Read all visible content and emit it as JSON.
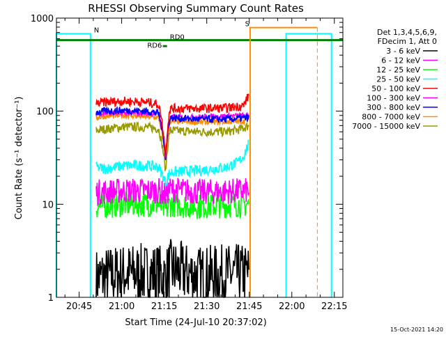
{
  "chart_data": {
    "type": "line",
    "title": "RHESSI Observing Summary Count Rates",
    "xlabel": "Start Time (24-Jul-10 20:37:02)",
    "ylabel": "Count Rate (s⁻¹ detector⁻¹)",
    "y_scale": "log",
    "ylim": [
      1,
      1000
    ],
    "xlim_minutes": [
      0,
      101
    ],
    "x_ticks": [
      {
        "min": 8,
        "label": "20:45"
      },
      {
        "min": 23,
        "label": "21:00"
      },
      {
        "min": 38,
        "label": "21:15"
      },
      {
        "min": 53,
        "label": "21:30"
      },
      {
        "min": 68,
        "label": "21:45"
      },
      {
        "min": 83,
        "label": "22:00"
      },
      {
        "min": 98,
        "label": "22:15"
      }
    ],
    "y_ticks": [
      {
        "value": 1,
        "label": "1"
      },
      {
        "value": 10,
        "label": "10"
      },
      {
        "value": 100,
        "label": "100"
      },
      {
        "value": 1000,
        "label": "1000"
      }
    ],
    "legend_header": [
      "Det 1,3,4,5,6,9,",
      "FDecim 1, Att 0"
    ],
    "legend_placement": "right",
    "series": [
      {
        "name": "3 - 6 keV",
        "color": "#000000",
        "x": [
          14,
          24,
          36,
          38.5,
          40,
          50,
          68
        ],
        "y": [
          1.6,
          1.8,
          1.8,
          1.6,
          2.0,
          1.7,
          1.8
        ]
      },
      {
        "name": "6 - 12 keV",
        "color": "#ff00ff",
        "x": [
          14,
          24,
          36,
          38.5,
          40,
          50,
          68
        ],
        "y": [
          13.5,
          14,
          14,
          12.5,
          14.5,
          13.5,
          14
        ]
      },
      {
        "name": "12 - 25 keV",
        "color": "#00ff00",
        "x": [
          14,
          24,
          36,
          38.5,
          40,
          50,
          68
        ],
        "y": [
          9.5,
          10,
          10,
          8.5,
          10,
          9.5,
          10
        ]
      },
      {
        "name": "25 - 50 keV",
        "color": "#00ffff",
        "x": [
          14,
          17,
          24,
          32,
          36,
          38.5,
          40,
          50,
          60,
          64,
          66,
          68
        ],
        "y": [
          25,
          24,
          26,
          26,
          25,
          17,
          22,
          23,
          25,
          28,
          33,
          45
        ]
      },
      {
        "name": "50 - 100 keV",
        "color": "#ff0000",
        "x": [
          14,
          17,
          24,
          32,
          36,
          38.5,
          40,
          50,
          60,
          66,
          68
        ],
        "y": [
          120,
          125,
          128,
          125,
          118,
          32,
          107,
          107,
          108,
          115,
          150
        ]
      },
      {
        "name": "100 - 300 keV",
        "color": "#ff00ff",
        "x": [
          14,
          36,
          38.5,
          40,
          68
        ],
        "y": [
          95,
          95,
          30,
          85,
          90
        ]
      },
      {
        "name": "300 - 800 keV",
        "color": "#0000ff",
        "x": [
          14,
          17,
          24,
          32,
          36,
          38.5,
          40,
          50,
          60,
          68
        ],
        "y": [
          97,
          100,
          102,
          100,
          95,
          31,
          85,
          82,
          82,
          85
        ]
      },
      {
        "name": "800 - 7000 keV",
        "color": "#ff8c00",
        "x": [
          14,
          17,
          24,
          32,
          36,
          38.5,
          40,
          50,
          60,
          66,
          68
        ],
        "y": [
          85,
          88,
          90,
          87,
          85,
          29,
          78,
          76,
          77,
          78,
          80
        ]
      },
      {
        "name": "7000 - 15000 keV",
        "color": "#999900",
        "x": [
          14,
          17,
          24,
          32,
          36,
          38.5,
          40,
          50,
          60,
          64,
          66,
          68
        ],
        "y": [
          62,
          64,
          68,
          67,
          65,
          22,
          62,
          60,
          60,
          63,
          66,
          70
        ]
      }
    ],
    "annotations": [
      {
        "text": "N",
        "color": "#00ffff"
      },
      {
        "text": "S",
        "color": "#ff8c00"
      },
      {
        "text": "RD0",
        "color": "#008000"
      },
      {
        "text": "RD6",
        "color": "#008000"
      }
    ],
    "footer_date": "15-Oct-2021 14:20"
  }
}
